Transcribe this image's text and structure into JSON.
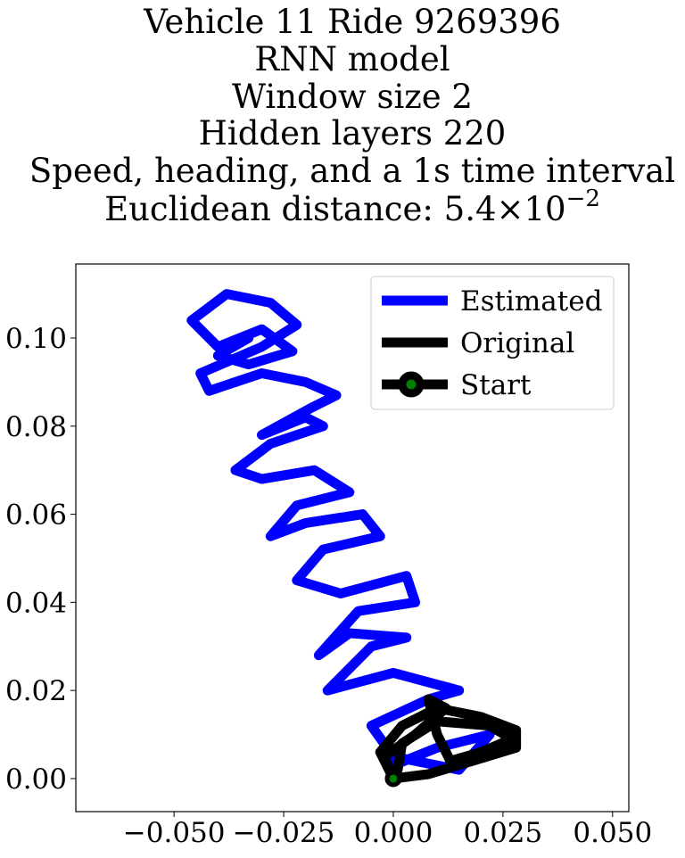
{
  "chart_data": {
    "type": "line",
    "title": [
      "Vehicle 11 Ride 9269396",
      "RNN model",
      "Window size 2",
      "Hidden layers 220",
      "Speed, heading, and a 1s time interval",
      "Euclidean distance: 5.4×10"
    ],
    "title_exponent": "−2",
    "xlim": [
      -0.0724,
      0.0537
    ],
    "ylim": [
      -0.0075,
      0.1168
    ],
    "xticks": [
      {
        "value": -0.05,
        "label": "−0.050"
      },
      {
        "value": -0.025,
        "label": "−0.025"
      },
      {
        "value": 0,
        "label": "0.000"
      },
      {
        "value": 0.025,
        "label": "0.025"
      },
      {
        "value": 0.05,
        "label": "0.050"
      }
    ],
    "yticks": [
      {
        "value": 0,
        "label": "0.00"
      },
      {
        "value": 0.02,
        "label": "0.02"
      },
      {
        "value": 0.04,
        "label": "0.04"
      },
      {
        "value": 0.06,
        "label": "0.06"
      },
      {
        "value": 0.08,
        "label": "0.08"
      },
      {
        "value": 0.1,
        "label": "0.10"
      }
    ],
    "grid": false,
    "legend": "upper right",
    "series": [
      {
        "name": "Estimated",
        "color": "#0000ff",
        "x": [
          0.0,
          0.01,
          0.022,
          0.015,
          0.0,
          -0.005,
          0.008,
          0.015,
          0.0,
          -0.015,
          -0.005,
          0.003,
          -0.01,
          -0.017,
          -0.008,
          0.005,
          0.003,
          -0.012,
          -0.022,
          -0.016,
          -0.003,
          -0.007,
          -0.02,
          -0.028,
          -0.022,
          -0.01,
          -0.018,
          -0.03,
          -0.036,
          -0.028,
          -0.016,
          -0.02,
          -0.03,
          -0.019,
          -0.013,
          -0.02,
          -0.03,
          -0.042,
          -0.044,
          -0.03,
          -0.022,
          -0.028,
          -0.038,
          -0.046,
          -0.04,
          -0.03,
          -0.023,
          -0.033,
          -0.04,
          -0.033
        ],
        "y": [
          0.003,
          0.007,
          0.01,
          0.002,
          0.005,
          0.012,
          0.018,
          0.02,
          0.024,
          0.02,
          0.03,
          0.032,
          0.033,
          0.028,
          0.038,
          0.04,
          0.046,
          0.042,
          0.045,
          0.052,
          0.055,
          0.06,
          0.058,
          0.055,
          0.062,
          0.065,
          0.07,
          0.068,
          0.07,
          0.076,
          0.08,
          0.082,
          0.078,
          0.084,
          0.087,
          0.09,
          0.092,
          0.088,
          0.092,
          0.098,
          0.103,
          0.108,
          0.11,
          0.104,
          0.098,
          0.102,
          0.097,
          0.094,
          0.096,
          0.1
        ]
      },
      {
        "name": "Original",
        "color": "#000000",
        "x": [
          0.0,
          -0.003,
          0.002,
          0.01,
          0.02,
          0.028,
          0.028,
          0.018,
          0.008,
          0.0,
          -0.002,
          0.005,
          0.012,
          0.008,
          0.01,
          0.013,
          0.02,
          0.027,
          0.022,
          0.01,
          0.002,
          0.001
        ],
        "y": [
          0.0,
          0.006,
          0.012,
          0.016,
          0.014,
          0.011,
          0.007,
          0.004,
          0.001,
          0.0,
          0.005,
          0.01,
          0.016,
          0.018,
          0.01,
          0.004,
          0.006,
          0.009,
          0.012,
          0.013,
          0.008,
          0.002
        ]
      },
      {
        "name": "Start",
        "color": "#000000",
        "marker_color": "#008000",
        "x": [
          0
        ],
        "y": [
          0
        ]
      }
    ]
  }
}
